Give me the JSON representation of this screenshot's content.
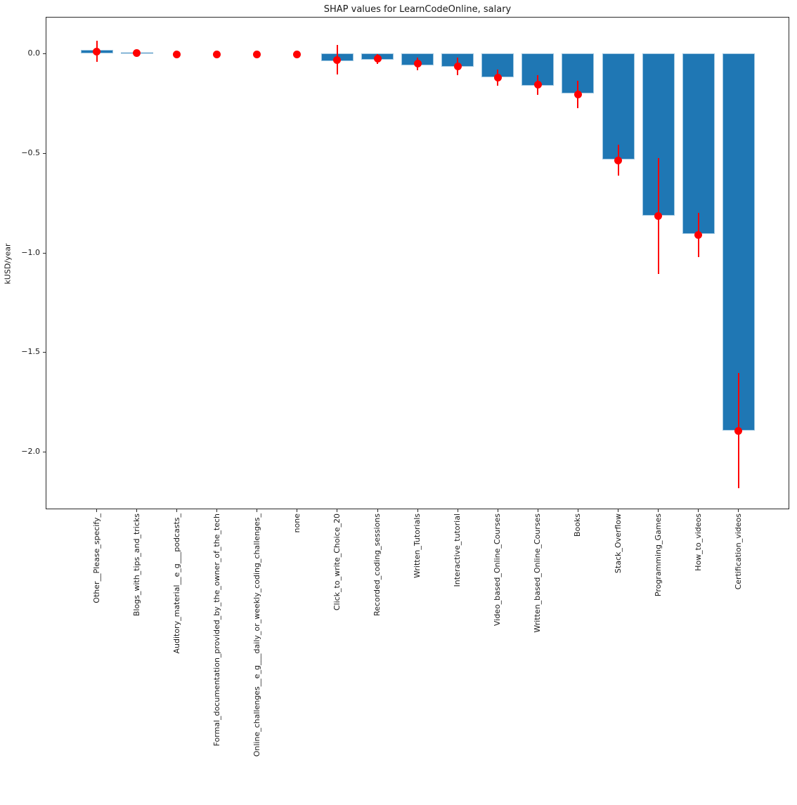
{
  "figure": {
    "title": "SHAP values for LearnCodeOnline, salary",
    "ylabel": "kUSD/year"
  },
  "chart_data": {
    "type": "bar",
    "title": "SHAP values for LearnCodeOnline, salary",
    "xlabel": "",
    "ylabel": "kUSD/year",
    "ylim": [
      -2.29,
      0.18
    ],
    "grid": false,
    "bar_color": "#1f77b4",
    "bar_edge_color": "#9ec6e0",
    "error_color": "#ff0000",
    "point_color": "#ff0000",
    "ytick_values": [
      0.0,
      -0.5,
      -1.0,
      -1.5,
      -2.0
    ],
    "ytick_labels": [
      "0.0",
      "−0.5",
      "−1.0",
      "−1.5",
      "−2.0"
    ],
    "categories": [
      "Other__Please_specify_",
      "Blogs_with_tips_and_tricks",
      "Auditory_material__e_g___podcasts_",
      "Formal_documentation_provided_by_the_owner_of_the_tech",
      "Online_challenges__e_g___daily_or_weekly_coding_challenges_",
      "none",
      "Click_to_write_Choice_20",
      "Recorded_coding_sessions",
      "Written_Tutorials",
      "Interactive_tutorial",
      "Video_based_Online_Courses",
      "Written_based_Online_Courses",
      "Books",
      "Stack_Overflow",
      "Programming_Games",
      "How_to_videos",
      "Certification_videos"
    ],
    "series": [
      {
        "name": "shap_value_bar",
        "values": [
          0.016,
          0.005,
          0.0,
          0.0,
          0.0,
          0.0,
          -0.038,
          -0.032,
          -0.059,
          -0.067,
          -0.12,
          -0.161,
          -0.202,
          -0.532,
          -0.814,
          -0.905,
          -1.893
        ]
      },
      {
        "name": "mean_point",
        "values": [
          0.01,
          0.003,
          -0.004,
          -0.004,
          -0.004,
          -0.004,
          -0.032,
          -0.028,
          -0.052,
          -0.065,
          -0.122,
          -0.158,
          -0.206,
          -0.537,
          -0.817,
          -0.911,
          -1.895
        ]
      },
      {
        "name": "error_bar_halfwidth",
        "values": [
          0.054,
          0.008,
          0.0,
          0.0,
          0.0,
          0.0,
          0.075,
          0.024,
          0.032,
          0.043,
          0.042,
          0.049,
          0.07,
          0.078,
          0.29,
          0.112,
          0.29
        ]
      }
    ]
  }
}
